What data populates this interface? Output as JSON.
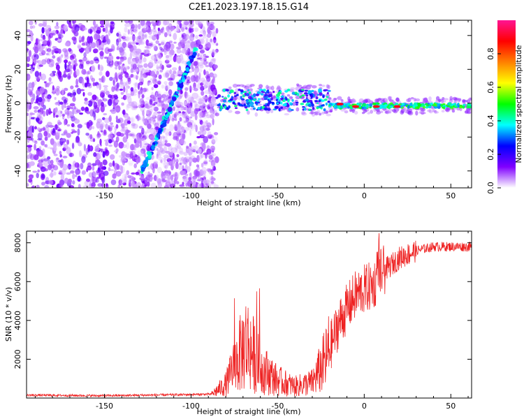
{
  "title": "C2E1.2023.197.18.15.G14",
  "chart_data": [
    {
      "type": "heatmap",
      "xlabel": "Height of straight line (km)",
      "ylabel": "Frequency (Hz)",
      "xlim": [
        -195,
        62
      ],
      "ylim": [
        -50,
        49
      ],
      "xticks": [
        -150,
        -100,
        -50,
        0,
        50
      ],
      "yticks": [
        -40,
        -20,
        0,
        20,
        40
      ],
      "colorbar": {
        "label": "Normalized spectral amplitude",
        "range": [
          0,
          1
        ],
        "ticks": [
          0.0,
          0.2,
          0.4,
          0.6,
          0.8
        ],
        "colormap": [
          "#ffffff",
          "#8000ff",
          "#0000ff",
          "#00ffff",
          "#00ff00",
          "#ffff00",
          "#ff8000",
          "#ff0000",
          "#ff1493"
        ]
      },
      "features": [
        {
          "name": "diagonal streak",
          "x": [
            -128,
            -97
          ],
          "y": [
            -40,
            32
          ]
        },
        {
          "name": "tone band",
          "x": [
            -85,
            62
          ],
          "y": [
            0,
            -2
          ]
        }
      ],
      "grid": false
    },
    {
      "type": "line",
      "xlabel": "Height of straight line (km)",
      "ylabel": "SNR (10 * v/v)",
      "xlim": [
        -195,
        62
      ],
      "ylim": [
        0,
        8600
      ],
      "xticks": [
        -150,
        -100,
        -50,
        0,
        50
      ],
      "yticks": [
        2000,
        4000,
        6000,
        8000
      ],
      "color": "#ee2222",
      "x": [
        -195,
        -150,
        -100,
        -88,
        -80,
        -72,
        -68,
        -60,
        -50,
        -40,
        -30,
        -22,
        -15,
        -10,
        -5,
        0,
        5,
        8,
        10,
        15,
        20,
        30,
        40,
        50,
        62
      ],
      "y": [
        150,
        120,
        180,
        200,
        700,
        2200,
        2900,
        1600,
        900,
        600,
        800,
        2000,
        3800,
        4600,
        5300,
        5600,
        5800,
        6200,
        6500,
        6800,
        7200,
        7600,
        7800,
        7800,
        7800
      ],
      "grid": false
    }
  ]
}
